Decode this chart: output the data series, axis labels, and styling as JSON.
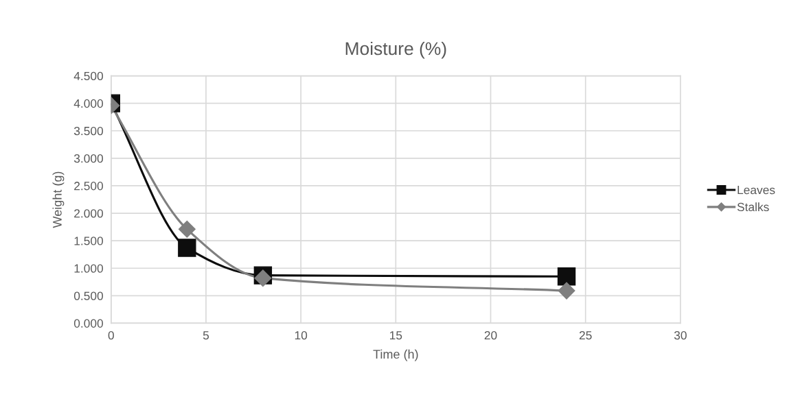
{
  "chart_data": {
    "type": "line",
    "title": "Moisture (%)",
    "xlabel": "Time (h)",
    "ylabel": "Weight (g)",
    "x": [
      0,
      4,
      8,
      24
    ],
    "series": [
      {
        "name": "Leaves",
        "color": "#0d0d0d",
        "values": [
          4.0,
          1.37,
          0.87,
          0.85
        ],
        "marker": "square"
      },
      {
        "name": "Stalks",
        "color": "#7f7f7f",
        "values": [
          3.96,
          1.71,
          0.82,
          0.59
        ],
        "marker": "diamond"
      }
    ],
    "xlim": [
      0,
      30
    ],
    "xticks": [
      0,
      5,
      10,
      15,
      20,
      25,
      30
    ],
    "ylim": [
      0,
      4.5
    ],
    "yticks": [
      {
        "value": 0,
        "label": "0.000"
      },
      {
        "value": 0.5,
        "label": "0.500"
      },
      {
        "value": 1,
        "label": "1.000"
      },
      {
        "value": 1.5,
        "label": "1.500"
      },
      {
        "value": 2,
        "label": "2.000"
      },
      {
        "value": 2.5,
        "label": "2.500"
      },
      {
        "value": 3,
        "label": "3.000"
      },
      {
        "value": 3.5,
        "label": "3.500"
      },
      {
        "value": 4,
        "label": "4.000"
      },
      {
        "value": 4.5,
        "label": "4.500"
      }
    ],
    "grid": true,
    "legend": "right",
    "line_style": "solid"
  }
}
